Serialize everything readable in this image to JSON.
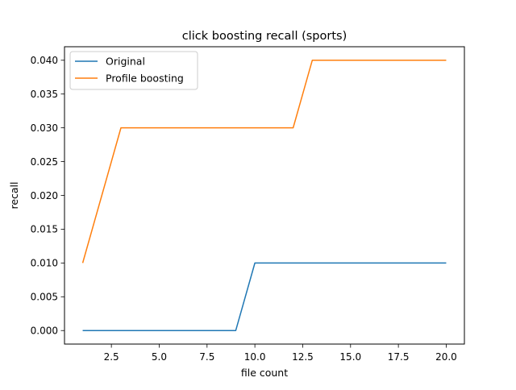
{
  "chart_data": {
    "type": "line",
    "title": "click boosting recall (sports)",
    "xlabel": "file count",
    "ylabel": "recall",
    "xlim": [
      0.05,
      20.95
    ],
    "ylim": [
      -0.002,
      0.042
    ],
    "x_ticks": [
      2.5,
      5.0,
      7.5,
      10.0,
      12.5,
      15.0,
      17.5,
      20.0
    ],
    "x_tick_labels": [
      "2.5",
      "5.0",
      "7.5",
      "10.0",
      "12.5",
      "15.0",
      "17.5",
      "20.0"
    ],
    "y_ticks": [
      0.0,
      0.005,
      0.01,
      0.015,
      0.02,
      0.025,
      0.03,
      0.035,
      0.04
    ],
    "y_tick_labels": [
      "0.000",
      "0.005",
      "0.010",
      "0.015",
      "0.020",
      "0.025",
      "0.030",
      "0.035",
      "0.040"
    ],
    "grid": false,
    "legend_position": "upper-left",
    "x": [
      1,
      2,
      3,
      4,
      5,
      6,
      7,
      8,
      9,
      10,
      11,
      12,
      13,
      14,
      15,
      16,
      17,
      18,
      19,
      20
    ],
    "series": [
      {
        "name": "Original",
        "color": "#1f77b4",
        "values": [
          0,
          0,
          0,
          0,
          0,
          0,
          0,
          0,
          0,
          0.01,
          0.01,
          0.01,
          0.01,
          0.01,
          0.01,
          0.01,
          0.01,
          0.01,
          0.01,
          0.01
        ]
      },
      {
        "name": "Profile boosting",
        "color": "#ff7f0e",
        "values": [
          0.01,
          0.02,
          0.03,
          0.03,
          0.03,
          0.03,
          0.03,
          0.03,
          0.03,
          0.03,
          0.03,
          0.03,
          0.04,
          0.04,
          0.04,
          0.04,
          0.04,
          0.04,
          0.04,
          0.04
        ]
      }
    ]
  }
}
